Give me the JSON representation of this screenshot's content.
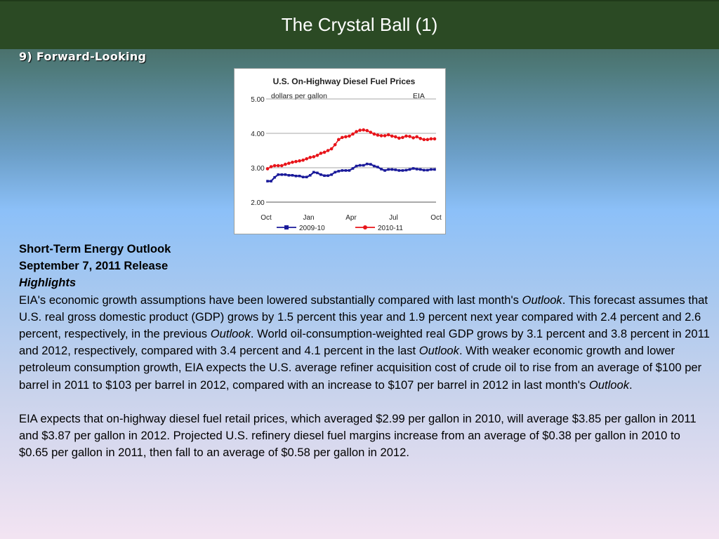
{
  "slide": {
    "title": "The Crystal Ball (1)",
    "subtitle": "9) Forward-Looking"
  },
  "chart_data": {
    "type": "line",
    "title": "U.S. On-Highway Diesel Fuel Prices",
    "ylabel": "dollars per gallon",
    "source": "EIA",
    "ylim": [
      2.0,
      5.0
    ],
    "yticks": [
      "5.00",
      "4.00",
      "3.00",
      "2.00"
    ],
    "xticks": [
      "Oct",
      "Jan",
      "Apr",
      "Jul",
      "Oct"
    ],
    "grid": true,
    "legend_position": "bottom",
    "series": [
      {
        "name": "2009-10",
        "color": "#1a1a9a",
        "values": [
          2.61,
          2.61,
          2.72,
          2.8,
          2.8,
          2.8,
          2.78,
          2.78,
          2.76,
          2.76,
          2.73,
          2.73,
          2.78,
          2.87,
          2.85,
          2.8,
          2.77,
          2.77,
          2.8,
          2.87,
          2.9,
          2.92,
          2.92,
          2.92,
          2.98,
          3.05,
          3.07,
          3.07,
          3.11,
          3.1,
          3.05,
          3.02,
          2.96,
          2.92,
          2.95,
          2.95,
          2.94,
          2.92,
          2.92,
          2.93,
          2.95,
          2.98,
          2.96,
          2.95,
          2.93,
          2.93,
          2.95,
          2.95
        ]
      },
      {
        "name": "2010-11",
        "color": "#e8141a",
        "values": [
          2.97,
          3.03,
          3.06,
          3.06,
          3.06,
          3.1,
          3.13,
          3.16,
          3.18,
          3.2,
          3.22,
          3.26,
          3.3,
          3.32,
          3.36,
          3.42,
          3.45,
          3.5,
          3.55,
          3.67,
          3.82,
          3.88,
          3.9,
          3.92,
          3.98,
          4.05,
          4.09,
          4.1,
          4.08,
          4.03,
          3.98,
          3.95,
          3.93,
          3.93,
          3.96,
          3.92,
          3.9,
          3.86,
          3.88,
          3.92,
          3.91,
          3.87,
          3.9,
          3.85,
          3.82,
          3.82,
          3.84,
          3.84
        ]
      }
    ]
  },
  "article": {
    "heading1": "Short-Term Energy Outlook",
    "heading2": "September 7, 2011 Release",
    "heading3": "Highlights",
    "p1": {
      "s1": "EIA's economic growth assumptions have been lowered substantially compared with last month's ",
      "i1": "Outlook",
      "s2": ".  This forecast assumes that U.S. real gross domestic product (GDP) grows by 1.5 percent this year and 1.9 percent next year compared with 2.4 percent and 2.6 percent, respectively, in the previous ",
      "i2": "Outlook",
      "s3": ".  World oil-consumption-weighted real GDP grows by 3.1 percent and 3.8 percent in 2011 and 2012, respectively, compared with 3.4 percent and 4.1 percent in the last ",
      "i3": "Outlook",
      "s4": ".  With weaker economic growth and lower petroleum consumption growth, EIA expects the U.S. average refiner acquisition cost of crude oil to rise from an average of $100 per barrel in 2011 to $103 per barrel in 2012, compared with an increase to $107 per barrel in 2012 in last month's ",
      "i4": "Outlook",
      "s5": "."
    },
    "p2": "EIA expects that on-highway diesel fuel retail prices, which averaged $2.99 per gallon in 2010, will average $3.85 per gallon in 2011 and $3.87 per gallon in 2012.  Projected U.S. refinery diesel fuel margins increase from an average of $0.38 per gallon in 2010 to $0.65 per gallon in 2011, then fall to an average of $0.58 per gallon in 2012."
  }
}
